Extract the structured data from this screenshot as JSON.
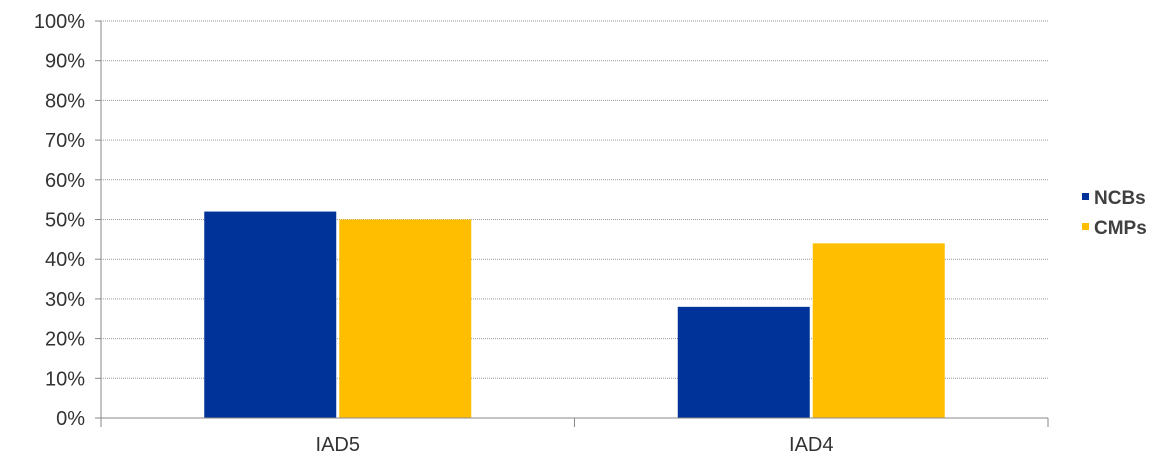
{
  "chart_data": {
    "type": "bar",
    "categories": [
      "IAD5",
      "IAD4"
    ],
    "series": [
      {
        "name": "NCBs",
        "color": "#003399",
        "values": [
          0.52,
          0.28
        ]
      },
      {
        "name": "CMPs",
        "color": "#FFBF00",
        "values": [
          0.5,
          0.44
        ]
      }
    ],
    "ylim": [
      0,
      1
    ],
    "yticks": [
      0,
      0.1,
      0.2,
      0.3,
      0.4,
      0.5,
      0.6,
      0.7,
      0.8,
      0.9,
      1.0
    ],
    "ytick_labels": [
      "0%",
      "10%",
      "20%",
      "30%",
      "40%",
      "50%",
      "60%",
      "70%",
      "80%",
      "90%",
      "100%"
    ],
    "grid": true,
    "legend_position": "right",
    "title": "",
    "xlabel": "",
    "ylabel": ""
  }
}
